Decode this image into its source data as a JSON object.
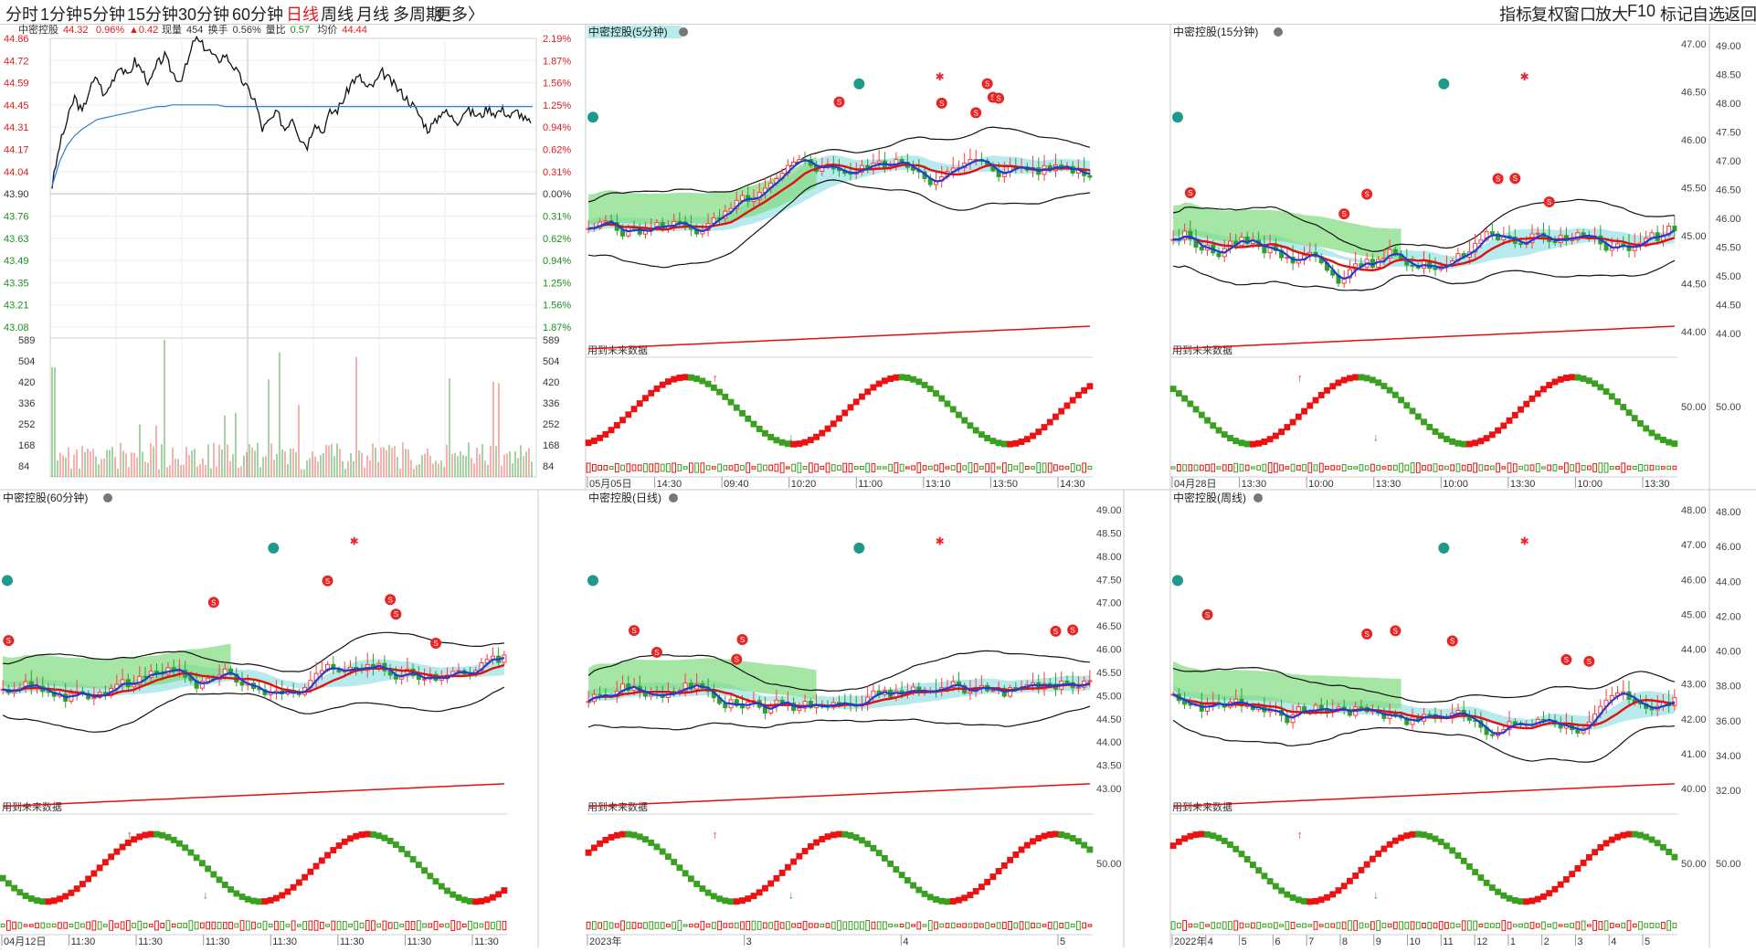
{
  "toolbar": {
    "periods": [
      "分时",
      "1分钟",
      "5分钟",
      "15分钟",
      "30分钟",
      "60分钟",
      "日线",
      "周线",
      "月线",
      "多周期",
      "更多"
    ],
    "active_period": "日线",
    "more_arrow": "〉",
    "right_tools": [
      "指标",
      "复权",
      "窗口",
      "放大",
      "F10",
      "标记",
      "自选",
      "返回"
    ]
  },
  "colors": {
    "up": "#ff3a3a",
    "down": "#2e9e2e",
    "fast_line": "#1a3fd6",
    "mid_line": "#e01010",
    "cloud_cyan": "#9ee3e6",
    "cloud_green": "#7fdc7f",
    "band": "#111111",
    "wave_red": "#ee1111",
    "wave_green": "#3aa020",
    "avg_line": "#2f7fd6",
    "grid": "#e4e4e4"
  },
  "timeshare": {
    "name": "中密控股",
    "price": "44.32",
    "pct": "0.96%",
    "change": "▲0.42",
    "volume_label": "现量",
    "volume": "454",
    "turnover_label": "换手",
    "turnover": "0.56%",
    "volratio_label": "量比",
    "volratio": "0.57",
    "avg_label": "均价",
    "avg": "44.44",
    "price_ticks": [
      "44.86",
      "44.72",
      "44.59",
      "44.45",
      "44.31",
      "44.17",
      "44.04",
      "43.90",
      "43.76",
      "43.63",
      "43.49",
      "43.35",
      "43.21",
      "43.08"
    ],
    "pct_ticks": [
      "2.19%",
      "1.87%",
      "1.56%",
      "1.25%",
      "0.94%",
      "0.62%",
      "0.31%",
      "0.00%",
      "0.31%",
      "0.62%",
      "0.94%",
      "1.25%",
      "1.56%",
      "1.87%"
    ],
    "vol_ticks": [
      "589",
      "504",
      "420",
      "336",
      "252",
      "168",
      "84"
    ],
    "price_series": [
      43.95,
      44.2,
      44.35,
      44.5,
      44.4,
      44.55,
      44.62,
      44.5,
      44.6,
      44.7,
      44.62,
      44.72,
      44.66,
      44.58,
      44.7,
      44.75,
      44.65,
      44.6,
      44.7,
      44.86,
      44.82,
      44.78,
      44.72,
      44.76,
      44.7,
      44.62,
      44.55,
      44.48,
      44.3,
      44.35,
      44.4,
      44.3,
      44.38,
      44.25,
      44.2,
      44.35,
      44.28,
      44.4,
      44.42,
      44.5,
      44.6,
      44.62,
      44.55,
      44.58,
      44.65,
      44.6,
      44.55,
      44.5,
      44.45,
      44.38,
      44.3,
      44.34,
      44.42,
      44.38,
      44.35,
      44.42,
      44.4,
      44.38,
      44.43,
      44.4,
      44.42,
      44.38,
      44.41,
      44.36,
      44.32
    ],
    "avg_series": [
      43.95,
      44.1,
      44.2,
      44.26,
      44.3,
      44.33,
      44.36,
      44.37,
      44.38,
      44.39,
      44.4,
      44.41,
      44.42,
      44.43,
      44.44,
      44.44,
      44.45,
      44.45,
      44.45,
      44.45,
      44.45,
      44.45,
      44.45,
      44.44,
      44.44,
      44.44,
      44.44,
      44.44,
      44.44,
      44.44,
      44.44,
      44.44,
      44.44,
      44.44,
      44.44,
      44.44,
      44.44,
      44.44,
      44.44,
      44.44,
      44.44,
      44.44,
      44.44,
      44.44,
      44.44,
      44.44,
      44.44,
      44.44,
      44.44,
      44.44,
      44.44,
      44.44,
      44.44,
      44.44,
      44.44,
      44.44,
      44.44,
      44.44,
      44.44,
      44.44,
      44.44,
      44.44,
      44.44,
      44.44,
      44.44
    ]
  },
  "panels": [
    {
      "id": "p5",
      "title": "中密控股(5分钟)",
      "title_highlight": true,
      "future_label": "用到未来数据",
      "y_ticks": [],
      "right_ticks": [],
      "osc_tick": "",
      "x_labels": [
        "05月05日",
        "14:30",
        "09:40",
        "10:20",
        "11:00",
        "13:10",
        "13:50",
        "14:30"
      ],
      "seed": 5
    },
    {
      "id": "p15",
      "title": "中密控股(15分钟)",
      "title_highlight": false,
      "future_label": "用到未来数据",
      "y_ticks": [
        "47.00",
        "46.50",
        "46.00",
        "45.50",
        "45.00",
        "44.50",
        "44.00"
      ],
      "right_ticks": [
        "49.00",
        "48.50",
        "48.00",
        "47.50",
        "47.00",
        "46.50",
        "46.00",
        "45.50",
        "45.00",
        "44.50",
        "44.00"
      ],
      "osc_tick": "50.00",
      "right_osc_tick": "50.00",
      "x_labels": [
        "04月28日",
        "13:30",
        "10:00",
        "13:30",
        "10:00",
        "13:30",
        "10:00",
        "13:30"
      ],
      "seed": 15
    },
    {
      "id": "p60",
      "title": "中密控股(60分钟)",
      "title_highlight": false,
      "future_label": "用到未来数据",
      "y_ticks": [],
      "right_ticks": [],
      "osc_tick": "",
      "x_labels": [
        "04月12日",
        "11:30",
        "11:30",
        "11:30",
        "11:30",
        "11:30",
        "11:30",
        "11:30"
      ],
      "seed": 60
    },
    {
      "id": "pday",
      "title": "中密控股(日线)",
      "title_highlight": false,
      "future_label": "用到未来数据",
      "y_ticks": [
        "49.00",
        "48.50",
        "48.00",
        "47.50",
        "47.00",
        "46.50",
        "46.00",
        "45.50",
        "45.00",
        "44.50",
        "44.00",
        "43.50",
        "43.00"
      ],
      "right_ticks": [],
      "osc_tick": "50.00",
      "x_labels": [
        "2023年",
        "3",
        "4",
        "5"
      ],
      "seed": 101
    },
    {
      "id": "pweek",
      "title": "中密控股(周线)",
      "title_highlight": false,
      "future_label": "用到未来数据",
      "y_ticks": [
        "48.00",
        "47.00",
        "46.00",
        "45.00",
        "44.00",
        "43.00",
        "42.00",
        "41.00",
        "40.00"
      ],
      "right_ticks": [
        "48.00",
        "46.00",
        "44.00",
        "42.00",
        "40.00",
        "38.00",
        "36.00",
        "34.00",
        "32.00"
      ],
      "osc_tick": "50.00",
      "right_osc_tick": "50.00",
      "x_labels": [
        "2022年",
        "4",
        "5",
        "6",
        "7",
        "8",
        "9",
        "10",
        "11",
        "12",
        "1",
        "2",
        "3",
        "4",
        "5"
      ],
      "seed": 7
    }
  ]
}
